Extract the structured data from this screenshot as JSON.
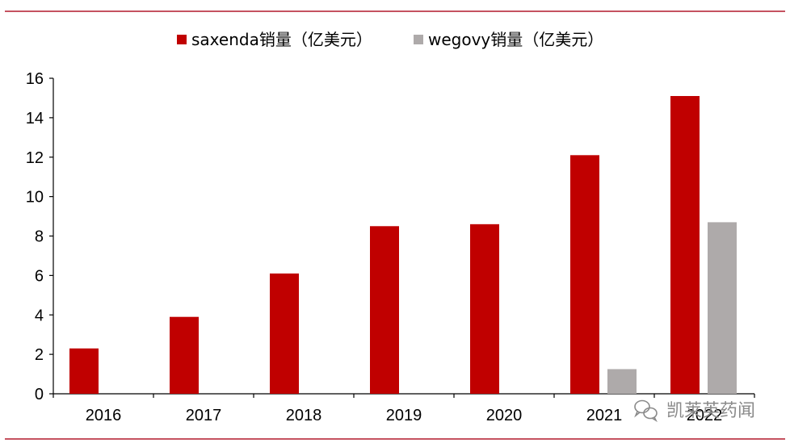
{
  "colors": {
    "rule": "#b2182b",
    "saxenda": "#c00000",
    "wegovy": "#aeaaaa",
    "axis": "#000000",
    "watermark": "#8a8a8a"
  },
  "chart_data": {
    "type": "bar",
    "title": "",
    "xlabel": "",
    "ylabel": "",
    "ylim": [
      0,
      16
    ],
    "yticks": [
      "0",
      "2",
      "4",
      "6",
      "8",
      "10",
      "12",
      "14",
      "16"
    ],
    "grid": false,
    "legend_position": "top-center",
    "categories": [
      "2016",
      "2017",
      "2018",
      "2019",
      "2020",
      "2021",
      "2022"
    ],
    "series": [
      {
        "name": "saxenda销量（亿美元）",
        "color": "#c00000",
        "values": [
          2.3,
          3.9,
          6.1,
          8.5,
          8.6,
          12.1,
          15.1
        ]
      },
      {
        "name": "wegovy销量（亿美元）",
        "color": "#aeaaaa",
        "values": [
          null,
          null,
          null,
          null,
          null,
          1.25,
          8.7
        ]
      }
    ]
  },
  "watermark": {
    "icon": "wechat-icon",
    "text": "凯莱英药闻"
  }
}
